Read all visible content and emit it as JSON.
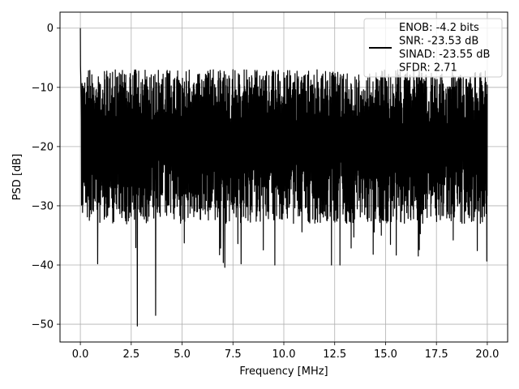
{
  "chart_data": {
    "type": "line",
    "xlabel": "Frequency [MHz]",
    "ylabel": "PSD [dB]",
    "xlim": [
      -1,
      21
    ],
    "ylim": [
      -53,
      2.7
    ],
    "xticks": [
      0,
      2.5,
      5,
      7.5,
      10,
      12.5,
      15,
      17.5,
      20
    ],
    "xtick_labels": [
      "0.0",
      "2.5",
      "5.0",
      "7.5",
      "10.0",
      "12.5",
      "15.0",
      "17.5",
      "20.0"
    ],
    "yticks": [
      0,
      -10,
      -20,
      -30,
      -40,
      -50
    ],
    "ytick_labels": [
      "0",
      "−10",
      "−20",
      "−30",
      "−40",
      "−50"
    ],
    "grid": true,
    "legend_position": "top-right",
    "legend_lines": [
      "ENOB: -4.2 bits",
      "SNR: -23.53 dB",
      "SINAD: -23.55 dB",
      "SFDR: 2.71"
    ],
    "series": [
      {
        "color": "#000000",
        "x_start": 0,
        "x_end": 20,
        "noise_level_db": -17,
        "noise_floor_min_db": -40,
        "noise_peak_max_db": -6,
        "spikes": [
          {
            "x": 0.0,
            "y": 0
          },
          {
            "x": 2.8,
            "y": -50.3
          },
          {
            "x": 3.7,
            "y": -48.5
          },
          {
            "x": 7.1,
            "y": -40.4
          },
          {
            "x": 7.9,
            "y": -39.8
          },
          {
            "x": 0.85,
            "y": -39.8
          }
        ]
      }
    ]
  }
}
